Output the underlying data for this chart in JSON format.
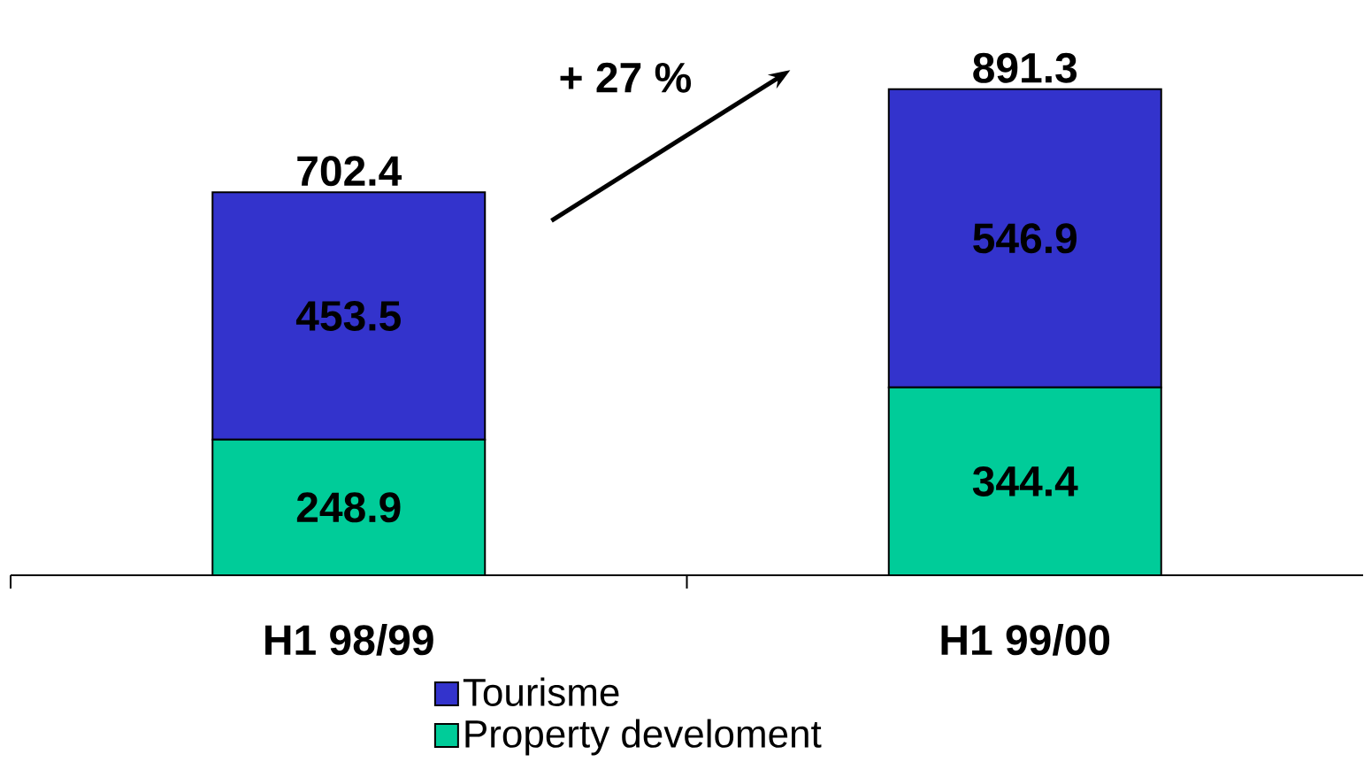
{
  "chart_data": {
    "type": "bar",
    "stacked": true,
    "categories": [
      "H1 98/99",
      "H1 99/00"
    ],
    "series": [
      {
        "name": "Property develoment",
        "color": "#00cc99",
        "values": [
          248.9,
          344.4
        ]
      },
      {
        "name": "Tourisme",
        "color": "#3333cc",
        "values": [
          453.5,
          546.9
        ]
      }
    ],
    "totals": [
      "702.4",
      "891.3"
    ],
    "data_labels": true,
    "annotations": [
      "+ 27 %"
    ],
    "legend": "bottom"
  }
}
